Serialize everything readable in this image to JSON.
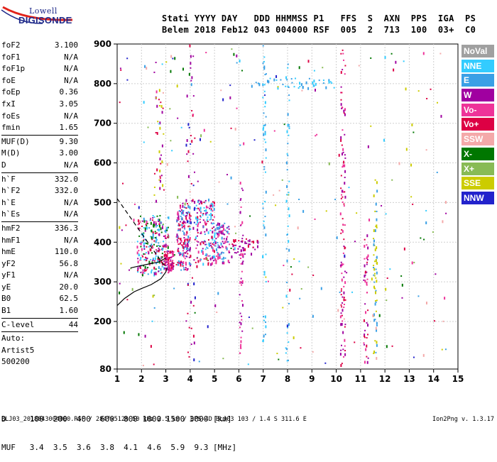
{
  "logo": {
    "line1": "Lowell",
    "line2": "DIGISONDE"
  },
  "header": {
    "line1": "Stati YYYY DAY   DDD HHMMSS P1   FFS  S  AXN  PPS  IGA  PS",
    "line2": "Belem 2018 Feb12 043 004000 RSF  005  2  713  100  03+  C0"
  },
  "params": [
    {
      "k": "foF2",
      "v": "3.100"
    },
    {
      "k": "foF1",
      "v": "N/A"
    },
    {
      "k": "foF1p",
      "v": "N/A"
    },
    {
      "k": "foE",
      "v": "N/A"
    },
    {
      "k": "foEp",
      "v": "0.36"
    },
    {
      "k": "fxI",
      "v": "3.05"
    },
    {
      "k": "foEs",
      "v": "N/A"
    },
    {
      "k": "fmin",
      "v": "1.65"
    },
    {
      "sep": true
    },
    {
      "k": "MUF(D)",
      "v": "9.30"
    },
    {
      "k": "M(D)",
      "v": "3.00"
    },
    {
      "k": "D",
      "v": "N/A"
    },
    {
      "sep": true
    },
    {
      "k": "h`F",
      "v": "332.0"
    },
    {
      "k": "h`F2",
      "v": "332.0"
    },
    {
      "k": "h`E",
      "v": "N/A"
    },
    {
      "k": "h`Es",
      "v": "N/A"
    },
    {
      "sep": true
    },
    {
      "k": "hmF2",
      "v": "336.3"
    },
    {
      "k": "hmF1",
      "v": "N/A"
    },
    {
      "k": "hmE",
      "v": "110.0"
    },
    {
      "k": "yF2",
      "v": "56.8"
    },
    {
      "k": "yF1",
      "v": "N/A"
    },
    {
      "k": "yE",
      "v": "20.0"
    },
    {
      "k": "B0",
      "v": "62.5"
    },
    {
      "k": "B1",
      "v": "1.60"
    },
    {
      "sep": true
    },
    {
      "k": "C-level",
      "v": "44"
    },
    {
      "sep": true
    },
    {
      "k": "Auto:",
      "v": ""
    },
    {
      "k": "Artist5",
      "v": ""
    },
    {
      "k": "500200",
      "v": ""
    }
  ],
  "legend": [
    {
      "label": "NoVal",
      "color": "#a0a0a0"
    },
    {
      "label": "NNE",
      "color": "#33ccff"
    },
    {
      "label": "E",
      "color": "#3aa0e6"
    },
    {
      "label": "W",
      "color": "#a000a0"
    },
    {
      "label": "Vo-",
      "color": "#ee3399"
    },
    {
      "label": "Vo+",
      "color": "#dd0044"
    },
    {
      "label": "SSW",
      "color": "#f4a9a9"
    },
    {
      "label": "X-",
      "color": "#007700"
    },
    {
      "label": "X+",
      "color": "#88bb55"
    },
    {
      "label": "SSE",
      "color": "#cccc00"
    },
    {
      "label": "NNW",
      "color": "#2222cc"
    }
  ],
  "footer": {
    "d_row": "D     100  200  400  600  800 1000 1500 3000 [km]",
    "muf_row": "MUF   3.4  3.5  3.6  3.8  4.1  4.6  5.9  9.3 [MHz]",
    "source": "BLJ03_2018043004000.RSF / 284fx512h 50 kHz 2.5 km / DPS-4D BLJ03 103 / 1.4 S 311.6 E",
    "version": "Ion2Png v. 1.3.17"
  },
  "chart_data": {
    "type": "scatter",
    "xlim": [
      1,
      15
    ],
    "ylim": [
      80,
      900
    ],
    "x_ticks": [
      "1",
      "2",
      "3",
      "4",
      "5",
      "6",
      "7",
      "8",
      "9",
      "10",
      "11",
      "12",
      "13",
      "14",
      "15"
    ],
    "y_ticks": [
      "80",
      "200",
      "300",
      "400",
      "500",
      "600",
      "700",
      "800",
      "900"
    ],
    "grid": true,
    "traces": [
      {
        "name": "virtual-height-trace",
        "style": "solid",
        "color": "#000000",
        "points": [
          [
            1.0,
            240
          ],
          [
            1.3,
            258
          ],
          [
            1.7,
            275
          ],
          [
            2.0,
            283
          ],
          [
            2.4,
            293
          ],
          [
            2.8,
            308
          ],
          [
            3.0,
            325
          ],
          [
            3.05,
            335
          ]
        ]
      },
      {
        "name": "profile-upper",
        "style": "dashed",
        "color": "#000000",
        "points": [
          [
            1.0,
            510
          ],
          [
            1.4,
            475
          ],
          [
            1.8,
            440
          ],
          [
            2.2,
            405
          ],
          [
            2.6,
            370
          ],
          [
            2.9,
            345
          ],
          [
            3.05,
            336
          ]
        ]
      },
      {
        "name": "profile-lower",
        "style": "solid",
        "color": "#000000",
        "points": [
          [
            1.55,
            335
          ],
          [
            1.9,
            340
          ],
          [
            2.3,
            345
          ],
          [
            2.7,
            350
          ],
          [
            3.0,
            360
          ]
        ]
      }
    ],
    "echo_clusters": [
      {
        "x": [
          1.8,
          3.1
        ],
        "y": [
          320,
          470
        ],
        "n": 260,
        "colors": [
          "#dd0044",
          "#a000a0",
          "#ee3399",
          "#3aa0e6",
          "#007700",
          "#33ccff"
        ]
      },
      {
        "x": [
          2.9,
          3.3
        ],
        "y": [
          330,
          380
        ],
        "n": 90,
        "colors": [
          "#dd0044",
          "#a000a0",
          "#ee3399"
        ]
      },
      {
        "x": [
          3.4,
          4.0
        ],
        "y": [
          330,
          500
        ],
        "n": 180,
        "colors": [
          "#3aa0e6",
          "#ee3399",
          "#dd0044",
          "#a000a0"
        ]
      },
      {
        "x": [
          4.2,
          5.0
        ],
        "y": [
          340,
          510
        ],
        "n": 170,
        "colors": [
          "#3aa0e6",
          "#ee3399",
          "#a000a0",
          "#dd0044",
          "#33ccff"
        ]
      },
      {
        "x": [
          5.0,
          5.6
        ],
        "y": [
          350,
          450
        ],
        "n": 90,
        "colors": [
          "#3aa0e6",
          "#a000a0",
          "#ee3399"
        ]
      },
      {
        "x": [
          5.7,
          6.8
        ],
        "y": [
          370,
          410
        ],
        "n": 40,
        "colors": [
          "#a000a0",
          "#dd0044"
        ]
      },
      {
        "x": [
          6.5,
          9.9
        ],
        "y": [
          790,
          815
        ],
        "n": 45,
        "colors": [
          "#3aa0e6",
          "#33ccff"
        ]
      },
      {
        "x": [
          10.15,
          10.35
        ],
        "y": [
          90,
          900
        ],
        "n": 110,
        "colors": [
          "#dd0044",
          "#a000a0",
          "#ee3399"
        ]
      },
      {
        "x": [
          11.1,
          11.3
        ],
        "y": [
          90,
          420
        ],
        "n": 45,
        "colors": [
          "#a000a0",
          "#dd0044",
          "#ee3399"
        ]
      },
      {
        "x": [
          11.5,
          11.65
        ],
        "y": [
          120,
          560
        ],
        "n": 60,
        "colors": [
          "#cccc00",
          "#3aa0e6"
        ]
      },
      {
        "x": [
          6.0,
          6.15
        ],
        "y": [
          90,
          560
        ],
        "n": 50,
        "colors": [
          "#a000a0",
          "#ee3399"
        ]
      },
      {
        "x": [
          6.95,
          7.1
        ],
        "y": [
          150,
          900
        ],
        "n": 55,
        "colors": [
          "#3aa0e6",
          "#33ccff"
        ]
      },
      {
        "x": [
          7.9,
          8.05
        ],
        "y": [
          100,
          900
        ],
        "n": 45,
        "colors": [
          "#3aa0e6",
          "#33ccff"
        ]
      },
      {
        "x": [
          3.8,
          4.2
        ],
        "y": [
          85,
          900
        ],
        "n": 60,
        "colors": [
          "#a000a0",
          "#dd0044",
          "#2222cc"
        ]
      },
      {
        "x": [
          2.5,
          2.9
        ],
        "y": [
          500,
          790
        ],
        "n": 35,
        "colors": [
          "#cccc00",
          "#a000a0",
          "#dd0044"
        ]
      },
      {
        "x": [
          1.0,
          14.6
        ],
        "y": [
          90,
          890
        ],
        "n": 240,
        "colors": [
          "#3aa0e6",
          "#a000a0",
          "#dd0044",
          "#cccc00",
          "#33ccff",
          "#ee3399",
          "#007700",
          "#88bb55",
          "#2222cc",
          "#f4a9a9"
        ]
      }
    ]
  }
}
